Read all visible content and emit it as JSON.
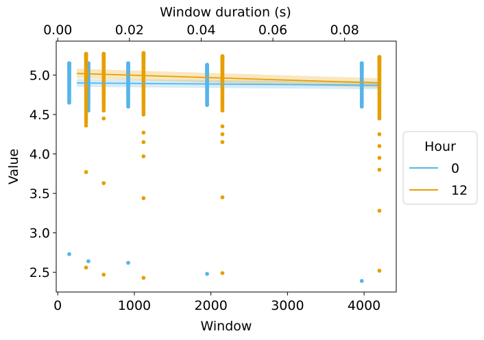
{
  "chart_data": {
    "type": "scatter",
    "xlabel": "Window",
    "ylabel": "Value",
    "top_xlabel": "Window duration (s)",
    "xlim": [
      -20,
      4420
    ],
    "ylim": [
      2.25,
      5.43
    ],
    "top_xlim": [
      -0.000427,
      0.0944
    ],
    "xticks": [
      0,
      1000,
      2000,
      3000,
      4000
    ],
    "xtick_labels": [
      "0",
      "1000",
      "2000",
      "3000",
      "4000"
    ],
    "yticks": [
      2.5,
      3.0,
      3.5,
      4.0,
      4.5,
      5.0
    ],
    "ytick_labels": [
      "2.5",
      "3.0",
      "3.5",
      "4.0",
      "4.5",
      "5.0"
    ],
    "top_xticks": [
      0.0,
      0.02,
      0.04,
      0.06,
      0.08
    ],
    "top_xtick_labels": [
      "0.00",
      "0.02",
      "0.04",
      "0.06",
      "0.08"
    ],
    "grid": false,
    "legend": {
      "title": "Hour",
      "placement": "outside-right"
    },
    "series": [
      {
        "name": "0",
        "color": "#56B4E9",
        "points": [
          {
            "x": 150,
            "y_min": 4.65,
            "y_max": 5.15,
            "low_outliers": [
              2.73
            ]
          },
          {
            "x": 400,
            "y_min": 4.55,
            "y_max": 5.15,
            "low_outliers": [
              2.64
            ]
          },
          {
            "x": 920,
            "y_min": 4.6,
            "y_max": 5.15,
            "low_outliers": [
              2.62
            ]
          },
          {
            "x": 1950,
            "y_min": 4.62,
            "y_max": 5.13,
            "low_outliers": [
              2.48
            ]
          },
          {
            "x": 3970,
            "y_min": 4.6,
            "y_max": 5.15,
            "low_outliers": [
              2.39
            ]
          }
        ],
        "trend": {
          "x": [
            250,
            4200
          ],
          "y": [
            4.9,
            4.87
          ],
          "band_width": 0.05
        }
      },
      {
        "name": "12",
        "color": "#E69F00",
        "points": [
          {
            "x": 370,
            "y_min": 4.4,
            "y_max": 5.27,
            "low_outliers": [
              4.36,
              3.77,
              2.56
            ]
          },
          {
            "x": 600,
            "y_min": 4.55,
            "y_max": 5.27,
            "low_outliers": [
              4.45,
              3.63,
              2.47
            ]
          },
          {
            "x": 1120,
            "y_min": 4.5,
            "y_max": 5.28,
            "low_outliers": [
              4.27,
              4.15,
              3.97,
              3.44,
              2.43
            ]
          },
          {
            "x": 2150,
            "y_min": 4.55,
            "y_max": 5.24,
            "low_outliers": [
              4.35,
              4.25,
              4.15,
              3.45,
              2.49
            ]
          },
          {
            "x": 4200,
            "y_min": 4.45,
            "y_max": 5.23,
            "low_outliers": [
              4.25,
              4.1,
              3.95,
              3.8,
              3.28,
              2.52
            ]
          }
        ],
        "trend": {
          "x": [
            250,
            4200
          ],
          "y": [
            5.02,
            4.9
          ],
          "band_width": 0.06
        }
      }
    ]
  }
}
